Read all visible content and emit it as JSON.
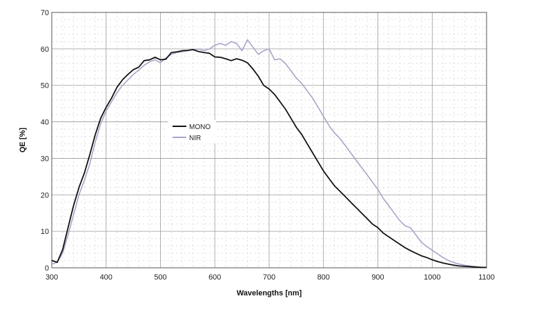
{
  "chart_data": {
    "type": "line",
    "title": "",
    "xlabel": "Wavelengths [nm]",
    "ylabel": "QE [%]",
    "xlim": [
      300,
      1100
    ],
    "ylim": [
      0,
      70
    ],
    "x_ticks": [
      "300",
      "400",
      "500",
      "600",
      "700",
      "800",
      "900",
      "1000",
      "1100"
    ],
    "y_ticks": [
      "0",
      "10",
      "20",
      "30",
      "40",
      "50",
      "60",
      "70"
    ],
    "grid": true,
    "legend_position": "center-left",
    "series": [
      {
        "name": "MONO",
        "color": "#111111",
        "x": [
          300,
          310,
          320,
          330,
          340,
          350,
          360,
          370,
          380,
          390,
          400,
          410,
          420,
          430,
          440,
          450,
          460,
          470,
          480,
          490,
          500,
          510,
          520,
          530,
          540,
          550,
          560,
          570,
          580,
          590,
          600,
          610,
          620,
          630,
          640,
          650,
          660,
          670,
          680,
          690,
          700,
          710,
          720,
          730,
          740,
          750,
          760,
          770,
          780,
          790,
          800,
          810,
          820,
          830,
          840,
          850,
          860,
          870,
          880,
          890,
          900,
          910,
          920,
          930,
          940,
          950,
          960,
          970,
          980,
          990,
          1000,
          1010,
          1020,
          1030,
          1040,
          1050,
          1060,
          1070,
          1080,
          1090,
          1100
        ],
        "y": [
          2,
          1.5,
          5,
          11,
          17,
          22,
          26,
          31,
          36.5,
          41,
          44,
          46.5,
          49.5,
          51.5,
          53,
          54.3,
          55,
          56.8,
          57,
          57.7,
          57,
          57.2,
          59,
          59.2,
          59.5,
          59.6,
          59.8,
          59.3,
          59,
          58.8,
          57.8,
          57.7,
          57.3,
          56.8,
          57.3,
          56.9,
          56.2,
          54.5,
          52.5,
          50,
          49,
          47.5,
          45.5,
          43.5,
          41,
          38.5,
          36.5,
          34,
          31.5,
          29,
          26.5,
          24.5,
          22.5,
          21,
          19.5,
          18,
          16.5,
          15,
          13.5,
          12,
          11,
          9.5,
          8.5,
          7.5,
          6.5,
          5.5,
          4.7,
          4,
          3.3,
          2.8,
          2.2,
          1.7,
          1.3,
          1,
          0.7,
          0.5,
          0.4,
          0.3,
          0.2,
          0.1,
          0.1
        ]
      },
      {
        "name": "NIR",
        "color": "#a8a4c8",
        "x": [
          300,
          310,
          320,
          330,
          340,
          350,
          360,
          370,
          380,
          390,
          400,
          410,
          420,
          430,
          440,
          450,
          460,
          470,
          480,
          490,
          500,
          510,
          520,
          530,
          540,
          550,
          560,
          570,
          580,
          590,
          600,
          610,
          620,
          630,
          640,
          650,
          660,
          670,
          680,
          690,
          700,
          710,
          720,
          730,
          740,
          750,
          760,
          770,
          780,
          790,
          800,
          810,
          820,
          830,
          840,
          850,
          860,
          870,
          880,
          890,
          900,
          910,
          920,
          930,
          940,
          950,
          960,
          970,
          980,
          990,
          1000,
          1010,
          1020,
          1030,
          1040,
          1050,
          1060,
          1070,
          1080,
          1090,
          1100
        ],
        "y": [
          1,
          1.5,
          4,
          9,
          14.5,
          20,
          24,
          28.5,
          34.5,
          39.5,
          43,
          45.5,
          48,
          50,
          51.5,
          53,
          54.2,
          55.5,
          56.5,
          57,
          56.2,
          57.5,
          58.5,
          59,
          59.2,
          59.5,
          59.8,
          60,
          59.5,
          60,
          61,
          61.5,
          61,
          62,
          61.5,
          59.5,
          62.5,
          60.5,
          58.5,
          59.5,
          60,
          57,
          57.3,
          56,
          54,
          52,
          50.5,
          48.5,
          46.5,
          44,
          41.5,
          39,
          37,
          35.5,
          33.5,
          31.5,
          29.5,
          27.5,
          25.5,
          23.5,
          21.5,
          19,
          17,
          15,
          13,
          11.5,
          11,
          9,
          7,
          5.8,
          4.8,
          3.8,
          2.8,
          2,
          1.4,
          1,
          0.7,
          0.5,
          0.3,
          0.2,
          0.1
        ]
      }
    ]
  }
}
